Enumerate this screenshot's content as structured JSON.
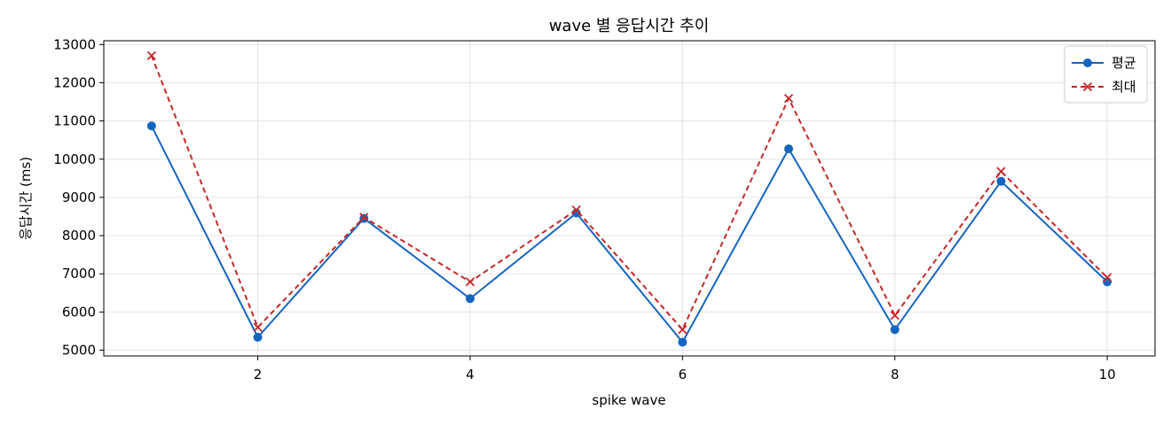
{
  "chart_data": {
    "type": "line",
    "title": "wave 별 응답시간 추이",
    "xlabel": "spike wave",
    "ylabel": "응답시간 (ms)",
    "x": [
      1,
      2,
      3,
      4,
      5,
      6,
      7,
      8,
      9,
      10
    ],
    "xlim": [
      0.55,
      10.45
    ],
    "ylim": [
      4850,
      13100
    ],
    "xticks": [
      2,
      4,
      6,
      8,
      10
    ],
    "yticks": [
      5000,
      6000,
      7000,
      8000,
      9000,
      10000,
      11000,
      12000,
      13000
    ],
    "grid": true,
    "legend_position": "top-right",
    "series": [
      {
        "name": "평균",
        "values": [
          10870,
          5340,
          8450,
          6350,
          8590,
          5210,
          10270,
          5540,
          9420,
          6790
        ],
        "color": "#1565c0",
        "line_style": "solid",
        "marker": "circle"
      },
      {
        "name": "최대",
        "values": [
          12710,
          5600,
          8480,
          6790,
          8670,
          5540,
          11590,
          5910,
          9680,
          6900
        ],
        "color": "#c62828",
        "line_style": "dashed",
        "marker": "x"
      }
    ]
  }
}
